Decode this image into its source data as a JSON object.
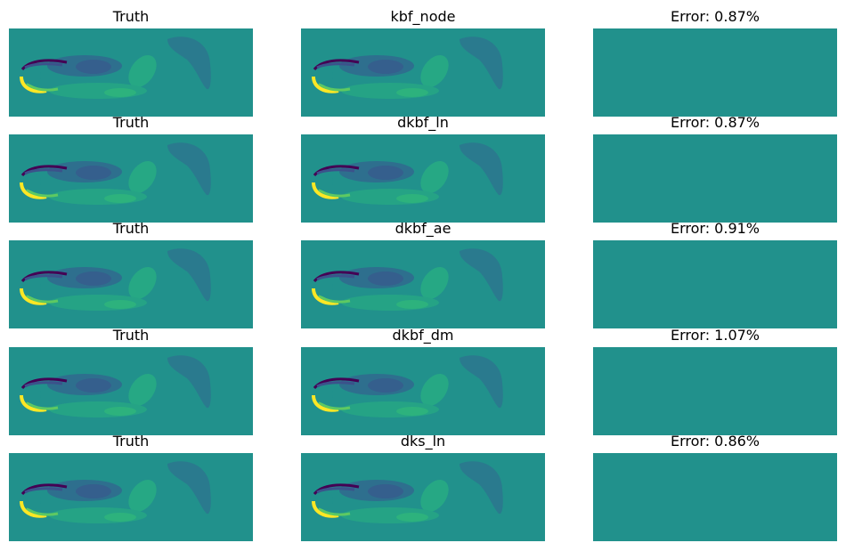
{
  "rows": [
    [
      "Truth",
      "kbf_node",
      "Error: 0.87%"
    ],
    [
      "Truth",
      "dkbf_ln",
      "Error: 0.87%"
    ],
    [
      "Truth",
      "dkbf_ae",
      "Error: 0.91%"
    ],
    [
      "Truth",
      "dkbf_dm",
      "Error: 1.07%"
    ],
    [
      "Truth",
      "dks_ln",
      "Error: 0.86%"
    ]
  ]
}
